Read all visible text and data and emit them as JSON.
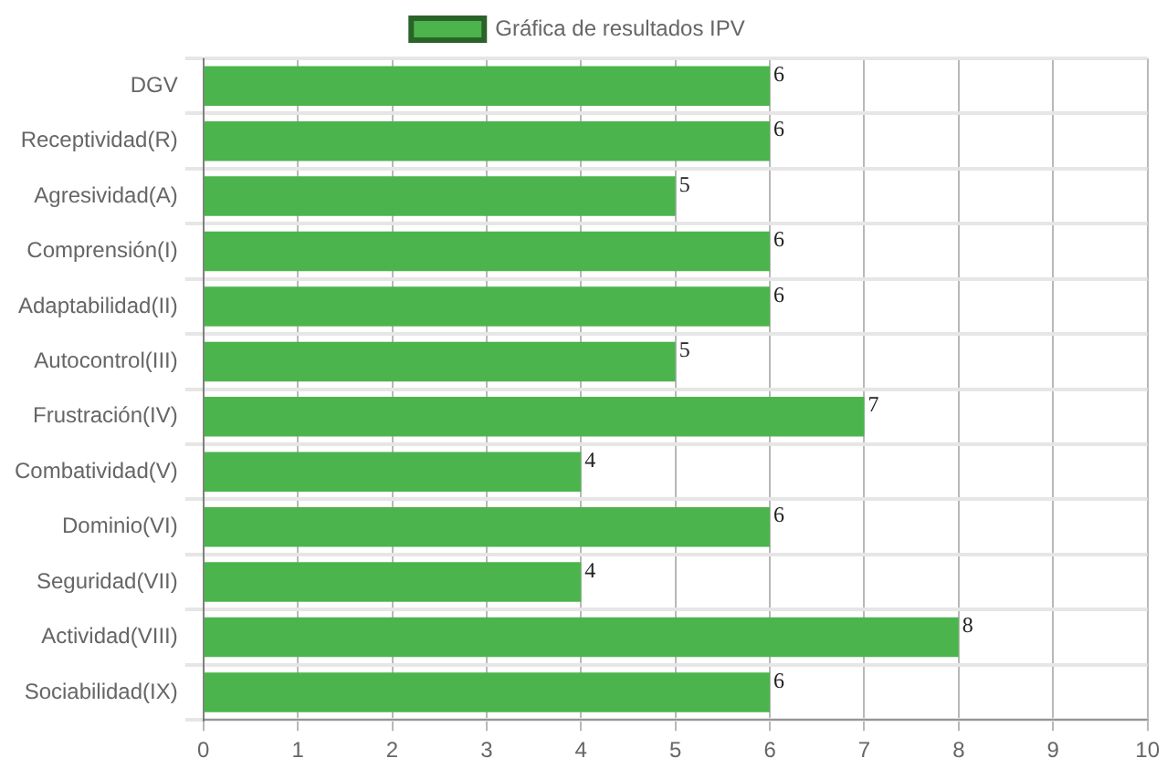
{
  "chart_data": {
    "type": "bar",
    "orientation": "horizontal",
    "categories": [
      "DGV",
      "Receptividad(R)",
      "Agresividad(A)",
      "Comprensión(I)",
      "Adaptabilidad(II)",
      "Autocontrol(III)",
      "Frustración(IV)",
      "Combatividad(V)",
      "Dominio(VI)",
      "Seguridad(VII)",
      "Actividad(VIII)",
      "Sociabilidad(IX)"
    ],
    "series": [
      {
        "name": "Gráfica de resultados IPV",
        "color": "#4cb44c",
        "values": [
          6,
          6,
          5,
          6,
          6,
          5,
          7,
          4,
          6,
          4,
          8,
          6
        ]
      }
    ],
    "xlim": [
      0,
      10
    ],
    "xticks": [
      0,
      1,
      2,
      3,
      4,
      5,
      6,
      7,
      8,
      9,
      10
    ],
    "grid": true,
    "legend": "top",
    "data_labels": true
  }
}
